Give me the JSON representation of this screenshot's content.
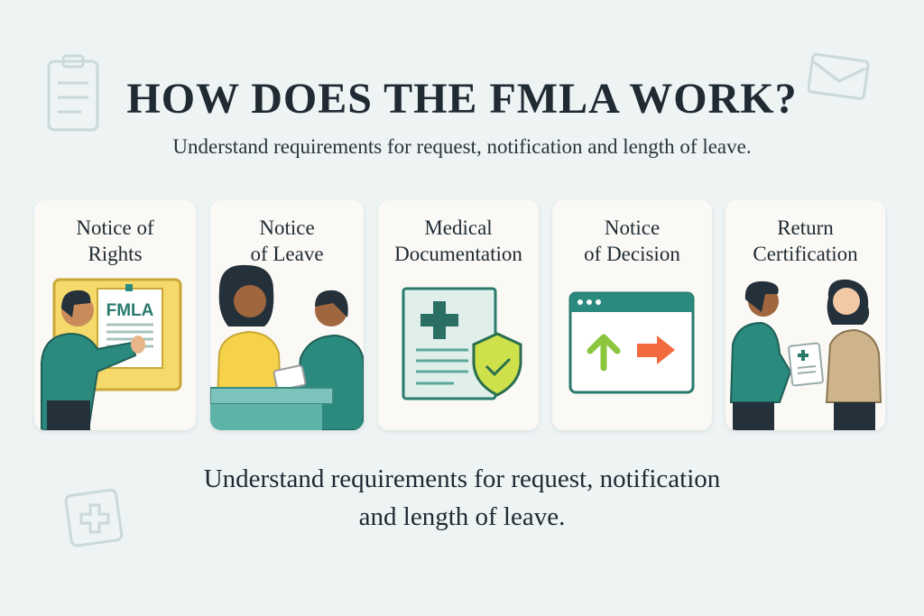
{
  "header": {
    "title": "HOW DOES THE FMLA WORK?",
    "subtitle": "Understand requirements for request, notification and length of leave."
  },
  "cards": [
    {
      "line1": "Notice of",
      "line2": "Rights",
      "poster_text": "FMLA",
      "icon": "person-pointing-at-poster"
    },
    {
      "line1": "Notice",
      "line2": "of Leave",
      "icon": "two-people-at-desk"
    },
    {
      "line1": "Medical",
      "line2": "Documentation",
      "icon": "document-with-shield"
    },
    {
      "line1": "Notice",
      "line2": "of Decision",
      "icon": "browser-window-with-arrows"
    },
    {
      "line1": "Return",
      "line2": "Certification",
      "icon": "two-people-exchanging-document"
    }
  ],
  "footer": {
    "line1": "Understand requirements for request, notification",
    "line2": "and length of leave."
  },
  "colors": {
    "background": "#eef3f4",
    "card": "#faf9f5",
    "teal": "#2a8a7e",
    "yellow": "#f5d96a",
    "green_arrow": "#8cc63f",
    "orange_arrow": "#f26a3d",
    "text": "#1f2a33"
  }
}
